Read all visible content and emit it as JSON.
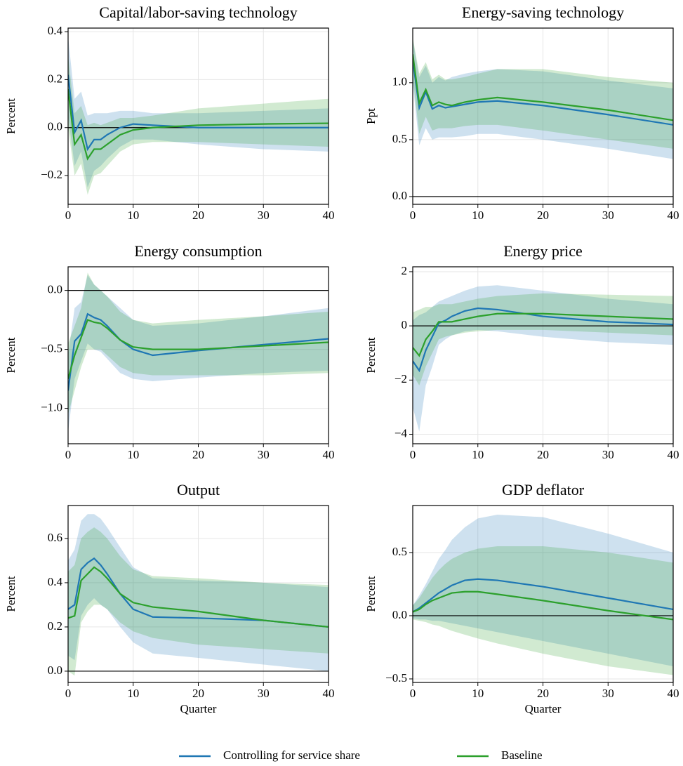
{
  "chart_data": [
    {
      "type": "line",
      "title": "Capital/labor-saving technology",
      "ylabel": "Percent",
      "x": [
        0,
        1,
        2,
        3,
        4,
        5,
        6,
        8,
        10,
        13,
        20,
        30,
        40
      ],
      "xlim": [
        0,
        40
      ],
      "xticks": [
        0,
        10,
        20,
        30,
        40
      ],
      "ylim": [
        -0.32,
        0.415
      ],
      "yticks": [
        {
          "value": -0.2,
          "label": "−0.2"
        },
        {
          "value": 0,
          "label": "0.0"
        },
        0.2,
        0.4
      ],
      "grid": true,
      "hline": 0,
      "series": [
        {
          "name": "Controlling for service share",
          "color": "#1f77b4",
          "values": [
            0.22,
            -0.02,
            0.03,
            -0.09,
            -0.05,
            -0.05,
            -0.03,
            0.0,
            0.015,
            0.01,
            0.0,
            0.0,
            0.0
          ],
          "lower": [
            0.05,
            -0.16,
            -0.1,
            -0.25,
            -0.18,
            -0.16,
            -0.13,
            -0.08,
            -0.05,
            -0.05,
            -0.07,
            -0.09,
            -0.1
          ],
          "upper": [
            0.38,
            0.12,
            0.15,
            0.05,
            0.06,
            0.06,
            0.06,
            0.07,
            0.07,
            0.06,
            0.06,
            0.07,
            0.08
          ]
        },
        {
          "name": "Baseline",
          "color": "#2ca02c",
          "values": [
            0.16,
            -0.07,
            -0.03,
            -0.13,
            -0.09,
            -0.09,
            -0.07,
            -0.03,
            -0.01,
            0.0,
            0.01,
            0.015,
            0.018
          ],
          "lower": [
            0.0,
            -0.2,
            -0.15,
            -0.28,
            -0.2,
            -0.19,
            -0.16,
            -0.1,
            -0.07,
            -0.06,
            -0.06,
            -0.07,
            -0.08
          ],
          "upper": [
            0.3,
            0.06,
            0.09,
            0.01,
            0.02,
            0.01,
            0.02,
            0.04,
            0.04,
            0.05,
            0.08,
            0.1,
            0.12
          ]
        }
      ]
    },
    {
      "type": "line",
      "title": "Energy-saving technology",
      "ylabel": "Ppt",
      "x": [
        0,
        1,
        2,
        3,
        4,
        5,
        6,
        8,
        10,
        13,
        20,
        30,
        40
      ],
      "xlim": [
        0,
        40
      ],
      "xticks": [
        0,
        10,
        20,
        30,
        40
      ],
      "ylim": [
        -0.068,
        1.48
      ],
      "yticks": [
        {
          "value": 0,
          "label": "0.0"
        },
        0.5,
        {
          "value": 1,
          "label": "1.0"
        }
      ],
      "grid": true,
      "hline": 0,
      "series": [
        {
          "name": "Controlling for service share",
          "color": "#1f77b4",
          "values": [
            1.2,
            0.78,
            0.92,
            0.77,
            0.8,
            0.78,
            0.79,
            0.81,
            0.83,
            0.84,
            0.8,
            0.72,
            0.63
          ],
          "lower": [
            1.0,
            0.45,
            0.6,
            0.5,
            0.52,
            0.52,
            0.52,
            0.53,
            0.55,
            0.55,
            0.5,
            0.42,
            0.33
          ],
          "upper": [
            1.38,
            1.05,
            1.15,
            1.0,
            1.05,
            1.02,
            1.05,
            1.08,
            1.1,
            1.12,
            1.1,
            1.02,
            0.95
          ]
        },
        {
          "name": "Baseline",
          "color": "#2ca02c",
          "values": [
            1.25,
            0.82,
            0.94,
            0.8,
            0.83,
            0.81,
            0.8,
            0.83,
            0.85,
            0.87,
            0.83,
            0.76,
            0.67
          ],
          "lower": [
            1.05,
            0.55,
            0.7,
            0.58,
            0.6,
            0.6,
            0.6,
            0.62,
            0.63,
            0.63,
            0.58,
            0.5,
            0.42
          ],
          "upper": [
            1.4,
            1.08,
            1.18,
            1.03,
            1.07,
            1.03,
            1.03,
            1.05,
            1.08,
            1.12,
            1.12,
            1.05,
            1.0
          ]
        }
      ]
    },
    {
      "type": "line",
      "title": "Energy consumption",
      "ylabel": "Percent",
      "x": [
        0,
        1,
        2,
        3,
        4,
        5,
        6,
        8,
        10,
        13,
        20,
        30,
        40
      ],
      "xlim": [
        0,
        40
      ],
      "xticks": [
        0,
        10,
        20,
        30,
        40
      ],
      "ylim": [
        -1.3,
        0.2
      ],
      "yticks": [
        {
          "value": -1,
          "label": "−1.0"
        },
        {
          "value": -0.5,
          "label": "−0.5"
        },
        {
          "value": 0,
          "label": "0.0"
        }
      ],
      "grid": true,
      "hline": 0,
      "series": [
        {
          "name": "Controlling for service share",
          "color": "#1f77b4",
          "values": [
            -0.85,
            -0.43,
            -0.37,
            -0.2,
            -0.23,
            -0.25,
            -0.3,
            -0.42,
            -0.5,
            -0.55,
            -0.51,
            -0.46,
            -0.41
          ],
          "lower": [
            -1.2,
            -0.75,
            -0.6,
            -0.45,
            -0.5,
            -0.52,
            -0.58,
            -0.7,
            -0.75,
            -0.77,
            -0.74,
            -0.7,
            -0.68
          ],
          "upper": [
            -0.55,
            -0.15,
            -0.1,
            0.13,
            0.05,
            0.0,
            -0.05,
            -0.15,
            -0.25,
            -0.3,
            -0.28,
            -0.22,
            -0.15
          ]
        },
        {
          "name": "Baseline",
          "color": "#2ca02c",
          "values": [
            -0.75,
            -0.55,
            -0.4,
            -0.25,
            -0.27,
            -0.28,
            -0.32,
            -0.42,
            -0.48,
            -0.5,
            -0.5,
            -0.47,
            -0.44
          ],
          "lower": [
            -1.05,
            -0.85,
            -0.65,
            -0.5,
            -0.5,
            -0.5,
            -0.55,
            -0.65,
            -0.7,
            -0.72,
            -0.72,
            -0.72,
            -0.7
          ],
          "upper": [
            -0.45,
            -0.3,
            -0.15,
            0.15,
            0.05,
            0.0,
            -0.05,
            -0.18,
            -0.25,
            -0.28,
            -0.25,
            -0.22,
            -0.18
          ]
        }
      ]
    },
    {
      "type": "line",
      "title": "Energy price",
      "ylabel": "Percent",
      "x": [
        0,
        1,
        2,
        3,
        4,
        5,
        6,
        8,
        10,
        13,
        20,
        30,
        40
      ],
      "xlim": [
        0,
        40
      ],
      "xticks": [
        0,
        10,
        20,
        30,
        40
      ],
      "ylim": [
        -4.35,
        2.18
      ],
      "yticks": [
        {
          "value": -4,
          "label": "−4"
        },
        {
          "value": -2,
          "label": "−2"
        },
        0,
        2
      ],
      "grid": true,
      "hline": 0,
      "series": [
        {
          "name": "Controlling for service share",
          "color": "#1f77b4",
          "values": [
            -1.3,
            -1.65,
            -0.9,
            -0.4,
            0.1,
            0.2,
            0.35,
            0.55,
            0.65,
            0.6,
            0.35,
            0.15,
            0.05
          ],
          "lower": [
            -3.0,
            -3.9,
            -2.2,
            -1.5,
            -0.7,
            -0.5,
            -0.35,
            -0.2,
            -0.15,
            -0.2,
            -0.4,
            -0.6,
            -0.7
          ],
          "upper": [
            0.2,
            0.4,
            0.5,
            0.7,
            0.9,
            1.0,
            1.1,
            1.3,
            1.45,
            1.5,
            1.3,
            1.0,
            0.8
          ]
        },
        {
          "name": "Baseline",
          "color": "#2ca02c",
          "values": [
            -0.8,
            -1.1,
            -0.5,
            -0.2,
            0.15,
            0.15,
            0.15,
            0.25,
            0.35,
            0.45,
            0.45,
            0.35,
            0.25
          ],
          "lower": [
            -1.8,
            -2.2,
            -1.5,
            -1.0,
            -0.5,
            -0.4,
            -0.35,
            -0.25,
            -0.2,
            -0.15,
            -0.15,
            -0.25,
            -0.35
          ],
          "upper": [
            0.5,
            0.6,
            0.7,
            0.7,
            0.8,
            0.8,
            0.8,
            0.9,
            1.0,
            1.1,
            1.2,
            1.15,
            1.1
          ]
        }
      ]
    },
    {
      "type": "line",
      "title": "Output",
      "ylabel": "Percent",
      "xlabel": "Quarter",
      "x": [
        0,
        1,
        2,
        3,
        4,
        5,
        6,
        8,
        10,
        13,
        20,
        30,
        40
      ],
      "xlim": [
        0,
        40
      ],
      "xticks": [
        0,
        10,
        20,
        30,
        40
      ],
      "ylim": [
        -0.051,
        0.749
      ],
      "yticks": [
        {
          "value": 0,
          "label": "0.0"
        },
        0.2,
        0.4,
        0.6
      ],
      "grid": true,
      "hline": 0,
      "series": [
        {
          "name": "Controlling for service share",
          "color": "#1f77b4",
          "values": [
            0.28,
            0.3,
            0.46,
            0.49,
            0.51,
            0.48,
            0.44,
            0.35,
            0.28,
            0.245,
            0.24,
            0.23,
            0.2
          ],
          "lower": [
            0.07,
            0.05,
            0.25,
            0.3,
            0.33,
            0.3,
            0.28,
            0.2,
            0.13,
            0.08,
            0.06,
            0.03,
            0.0
          ],
          "upper": [
            0.5,
            0.55,
            0.68,
            0.71,
            0.71,
            0.69,
            0.65,
            0.56,
            0.47,
            0.42,
            0.41,
            0.4,
            0.38
          ]
        },
        {
          "name": "Baseline",
          "color": "#2ca02c",
          "values": [
            0.24,
            0.25,
            0.41,
            0.44,
            0.47,
            0.45,
            0.42,
            0.35,
            0.31,
            0.29,
            0.27,
            0.23,
            0.2
          ],
          "lower": [
            0.0,
            -0.02,
            0.22,
            0.27,
            0.3,
            0.3,
            0.28,
            0.22,
            0.18,
            0.15,
            0.12,
            0.1,
            0.08
          ],
          "upper": [
            0.45,
            0.48,
            0.6,
            0.63,
            0.65,
            0.63,
            0.6,
            0.52,
            0.46,
            0.43,
            0.42,
            0.4,
            0.39
          ]
        }
      ]
    },
    {
      "type": "line",
      "title": "GDP deflator",
      "ylabel": "Percent",
      "xlabel": "Quarter",
      "x": [
        0,
        1,
        2,
        3,
        4,
        5,
        6,
        8,
        10,
        13,
        20,
        30,
        40
      ],
      "xlim": [
        0,
        40
      ],
      "xticks": [
        0,
        10,
        20,
        30,
        40
      ],
      "ylim": [
        -0.528,
        0.872
      ],
      "yticks": [
        {
          "value": -0.5,
          "label": "−0.5"
        },
        {
          "value": 0,
          "label": "0.0"
        },
        0.5
      ],
      "grid": true,
      "hline": 0,
      "series": [
        {
          "name": "Controlling for service share",
          "color": "#1f77b4",
          "values": [
            0.03,
            0.06,
            0.1,
            0.14,
            0.18,
            0.21,
            0.24,
            0.28,
            0.29,
            0.28,
            0.23,
            0.14,
            0.05
          ],
          "lower": [
            -0.02,
            -0.03,
            -0.03,
            -0.04,
            -0.04,
            -0.05,
            -0.06,
            -0.08,
            -0.1,
            -0.13,
            -0.2,
            -0.3,
            -0.4
          ],
          "upper": [
            0.08,
            0.16,
            0.25,
            0.35,
            0.45,
            0.52,
            0.6,
            0.7,
            0.77,
            0.8,
            0.78,
            0.65,
            0.5
          ]
        },
        {
          "name": "Baseline",
          "color": "#2ca02c",
          "values": [
            0.03,
            0.05,
            0.09,
            0.12,
            0.14,
            0.16,
            0.18,
            0.19,
            0.19,
            0.17,
            0.12,
            0.04,
            -0.03
          ],
          "lower": [
            -0.03,
            -0.04,
            -0.05,
            -0.07,
            -0.08,
            -0.1,
            -0.12,
            -0.15,
            -0.18,
            -0.22,
            -0.3,
            -0.4,
            -0.47
          ],
          "upper": [
            0.08,
            0.14,
            0.22,
            0.3,
            0.36,
            0.41,
            0.45,
            0.5,
            0.53,
            0.55,
            0.55,
            0.5,
            0.42
          ]
        }
      ]
    }
  ]
}
